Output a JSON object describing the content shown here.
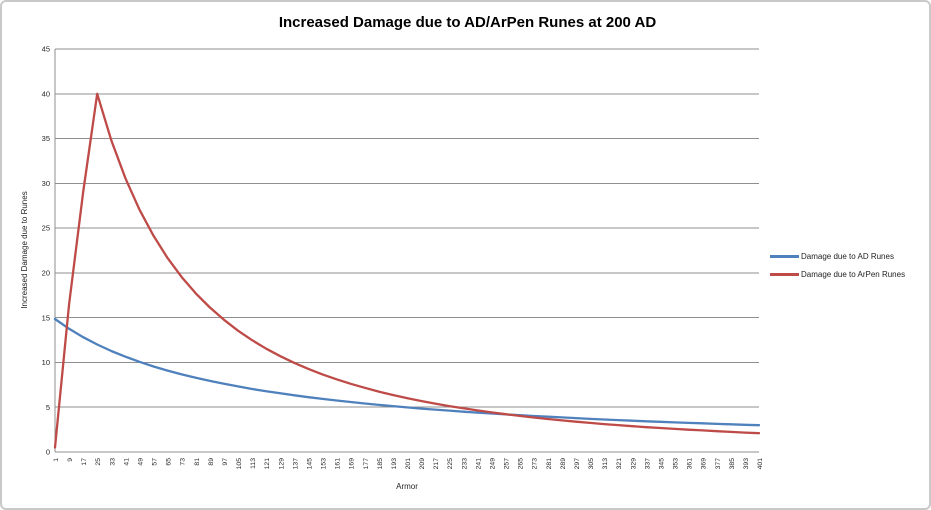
{
  "chart_data": {
    "type": "line",
    "title": "Increased Damage due to AD/ArPen Runes at 200 AD",
    "xlabel": "Armor",
    "ylabel": "Increased Damage due to Runes",
    "ylim": [
      0,
      45
    ],
    "y_ticks": [
      0,
      5,
      10,
      15,
      20,
      25,
      30,
      35,
      40,
      45
    ],
    "grid": true,
    "legend_position": "right",
    "categories": [
      1,
      9,
      17,
      25,
      33,
      41,
      49,
      57,
      65,
      73,
      81,
      89,
      97,
      105,
      113,
      121,
      129,
      137,
      145,
      153,
      161,
      169,
      177,
      185,
      193,
      201,
      209,
      217,
      225,
      233,
      241,
      249,
      257,
      265,
      273,
      281,
      289,
      297,
      305,
      313,
      321,
      329,
      337,
      345,
      353,
      361,
      369,
      377,
      385,
      393,
      401
    ],
    "series": [
      {
        "name": "Damage due to AD Runes",
        "color": "#4F81BD",
        "values": [
          14.85,
          13.76,
          12.82,
          12.0,
          11.28,
          10.64,
          10.07,
          9.55,
          9.09,
          8.67,
          8.29,
          7.94,
          7.61,
          7.32,
          7.04,
          6.79,
          6.55,
          6.33,
          6.12,
          5.93,
          5.75,
          5.58,
          5.42,
          5.26,
          5.12,
          4.98,
          4.85,
          4.73,
          4.62,
          4.5,
          4.4,
          4.3,
          4.2,
          4.11,
          4.02,
          3.94,
          3.86,
          3.78,
          3.7,
          3.63,
          3.56,
          3.5,
          3.43,
          3.37,
          3.31,
          3.25,
          3.2,
          3.14,
          3.09,
          3.04,
          2.99
        ]
      },
      {
        "name": "Damage due to ArPen Runes",
        "color": "#BE4B48",
        "values": [
          0.5,
          16.51,
          29.06,
          40.0,
          34.81,
          30.57,
          27.06,
          24.13,
          21.65,
          19.53,
          17.71,
          16.13,
          14.76,
          13.55,
          12.48,
          11.54,
          10.7,
          9.95,
          9.28,
          8.67,
          8.12,
          7.62,
          7.17,
          6.75,
          6.37,
          6.02,
          5.7,
          5.4,
          5.13,
          4.88,
          4.64,
          4.42,
          4.22,
          4.03,
          3.85,
          3.69,
          3.53,
          3.38,
          3.25,
          3.12,
          3.0,
          2.88,
          2.77,
          2.68,
          2.58,
          2.49,
          2.41,
          2.32,
          2.24,
          2.17,
          2.1
        ]
      }
    ],
    "colors": {
      "grid": "#8f8f8f",
      "axis": "#8f8f8f",
      "text": "#1f1f1f"
    }
  }
}
